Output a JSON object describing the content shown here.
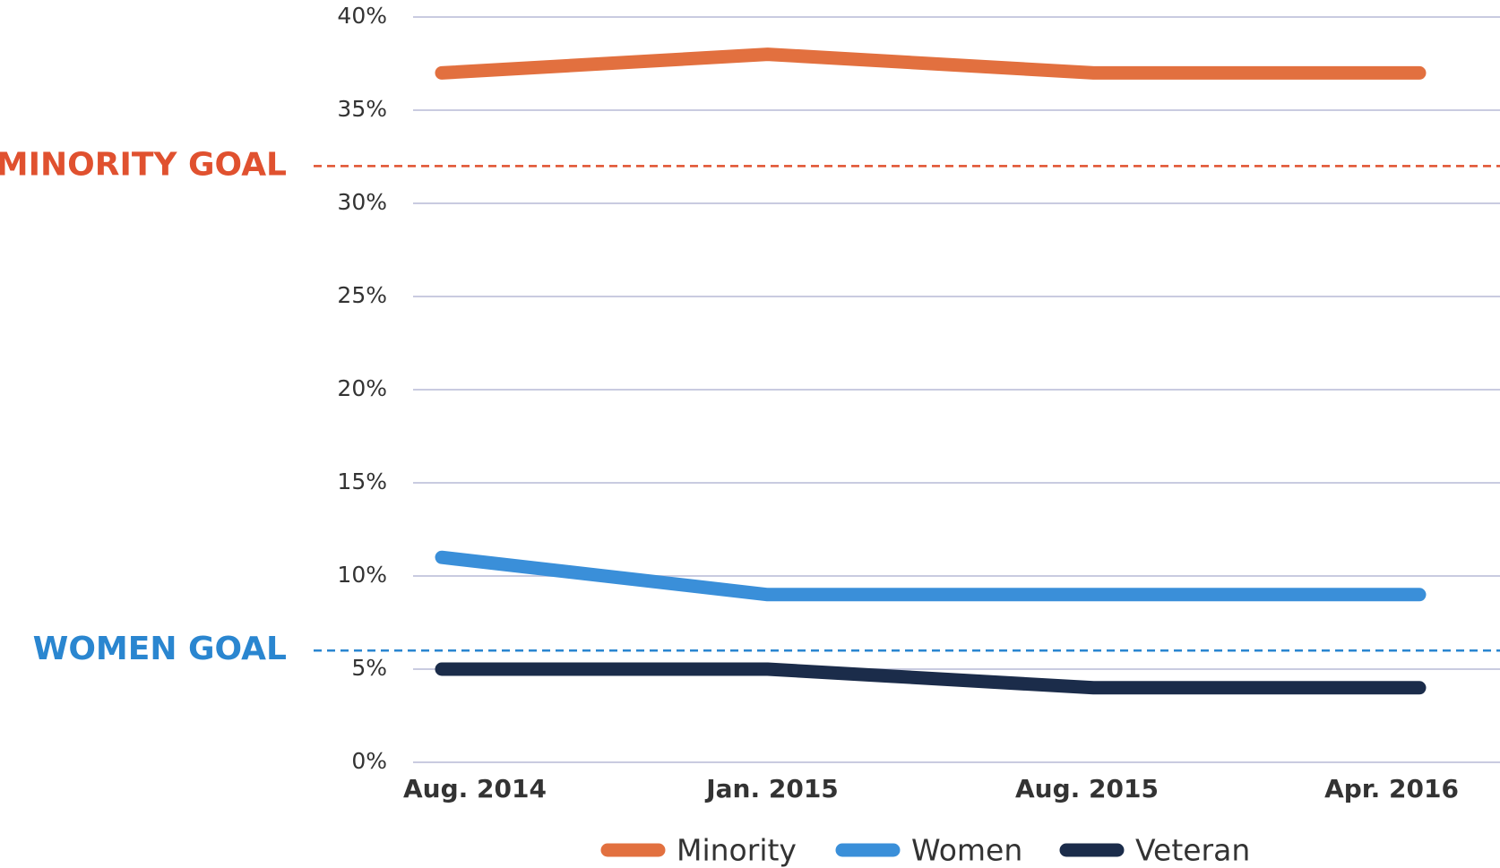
{
  "chart_data": {
    "type": "line",
    "categories": [
      "Aug. 2014",
      "Jan. 2015",
      "Aug. 2015",
      "Apr. 2016"
    ],
    "series": [
      {
        "name": "Minority",
        "color": "#e2703f",
        "values": [
          37,
          38,
          37,
          37
        ]
      },
      {
        "name": "Women",
        "color": "#3a8fd9",
        "values": [
          11,
          9,
          9,
          9
        ]
      },
      {
        "name": "Veteran",
        "color": "#1b2c4a",
        "values": [
          5,
          5,
          4,
          4
        ]
      }
    ],
    "ylim": [
      0,
      40
    ],
    "yticks": [
      {
        "value": 0,
        "label": "0%"
      },
      {
        "value": 5,
        "label": "5%"
      },
      {
        "value": 10,
        "label": "10%"
      },
      {
        "value": 15,
        "label": "15%"
      },
      {
        "value": 20,
        "label": "20%"
      },
      {
        "value": 25,
        "label": "25%"
      },
      {
        "value": 30,
        "label": "30%"
      },
      {
        "value": 35,
        "label": "35%"
      },
      {
        "value": 40,
        "label": "40%"
      }
    ],
    "grid": true,
    "annotations": [
      {
        "label": "MINORITY GOAL",
        "value": 32,
        "color": "#e0512f"
      },
      {
        "label": "WOMEN GOAL",
        "value": 6,
        "color": "#2a86d0"
      }
    ],
    "legend": "bottom"
  }
}
